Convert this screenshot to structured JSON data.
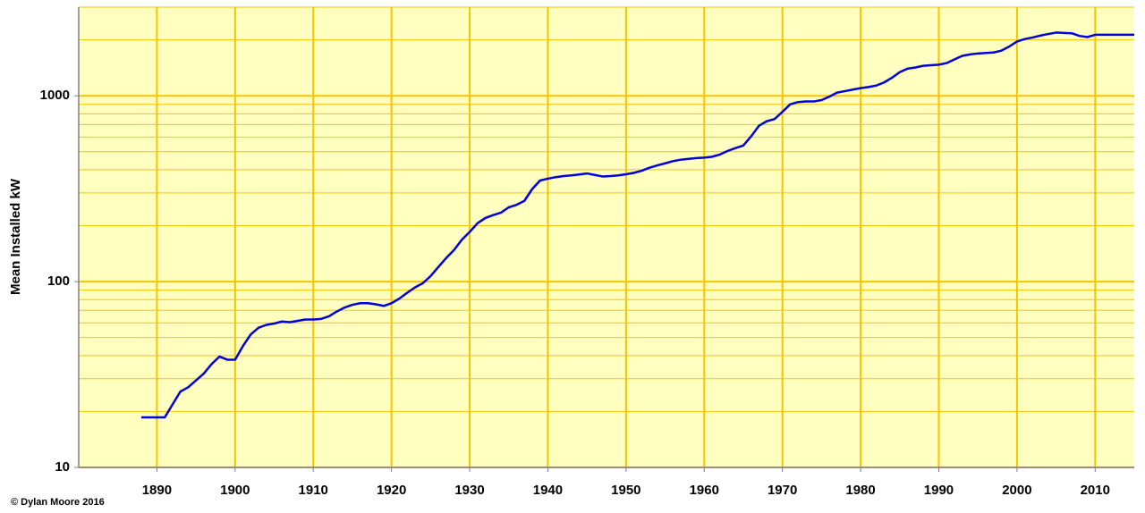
{
  "chart_data": {
    "type": "line",
    "y_label": "Mean Installed kW",
    "credit": "© Dylan Moore 2016",
    "log_y": true,
    "grid": true,
    "color": "#0000dd",
    "xlim": [
      1880,
      2015
    ],
    "xticks": [
      1890,
      1900,
      1910,
      1920,
      1930,
      1940,
      1950,
      1960,
      1970,
      1980,
      1990,
      2000,
      2010
    ],
    "ylim": [
      10,
      3000
    ],
    "yticks": [
      10,
      100,
      1000
    ],
    "yminor": [
      20,
      30,
      40,
      50,
      60,
      70,
      80,
      90,
      200,
      300,
      400,
      500,
      600,
      700,
      800,
      900,
      2000,
      3000
    ],
    "x": [
      1888,
      1891,
      1893,
      1894,
      1896,
      1897,
      1898,
      1899,
      1900,
      1901,
      1902,
      1903,
      1904,
      1905,
      1906,
      1907,
      1908,
      1909,
      1910,
      1911,
      1912,
      1913,
      1914,
      1915,
      1916,
      1917,
      1918,
      1919,
      1920,
      1921,
      1922,
      1923,
      1924,
      1925,
      1926,
      1927,
      1928,
      1929,
      1930,
      1931,
      1932,
      1933,
      1934,
      1935,
      1936,
      1937,
      1938,
      1939,
      1940,
      1941,
      1942,
      1943,
      1944,
      1945,
      1946,
      1947,
      1948,
      1949,
      1950,
      1951,
      1952,
      1953,
      1954,
      1955,
      1956,
      1957,
      1958,
      1959,
      1960,
      1961,
      1962,
      1963,
      1964,
      1965,
      1966,
      1967,
      1968,
      1969,
      1970,
      1971,
      1972,
      1973,
      1974,
      1975,
      1976,
      1977,
      1978,
      1979,
      1980,
      1981,
      1982,
      1983,
      1984,
      1985,
      1986,
      1987,
      1988,
      1989,
      1990,
      1991,
      1992,
      1993,
      1994,
      1995,
      1996,
      1997,
      1998,
      1999,
      2000,
      2001,
      2002,
      2003,
      2004,
      2005,
      2006,
      2007,
      2008,
      2009,
      2010,
      2011,
      2012,
      2013,
      2014,
      2015
    ],
    "values": [
      18.6,
      18.6,
      25.6,
      27,
      32,
      36,
      39.5,
      38,
      38,
      45,
      52,
      56.5,
      58.5,
      59.5,
      61,
      60.5,
      61.5,
      62.5,
      62.5,
      63,
      65,
      69,
      72.5,
      75,
      76.5,
      76.5,
      75.5,
      74,
      76.5,
      81,
      87,
      93,
      98,
      107,
      120,
      134,
      148,
      168,
      185,
      206,
      220,
      228,
      235,
      251,
      259,
      272,
      315,
      350,
      358,
      365,
      370,
      373,
      377,
      382,
      375,
      368,
      370,
      373,
      378,
      385,
      395,
      410,
      422,
      433,
      445,
      453,
      458,
      462,
      465,
      470,
      483,
      505,
      523,
      540,
      605,
      690,
      730,
      750,
      820,
      900,
      925,
      932,
      932,
      948,
      990,
      1040,
      1060,
      1080,
      1100,
      1115,
      1135,
      1180,
      1250,
      1340,
      1400,
      1420,
      1450,
      1460,
      1470,
      1500,
      1570,
      1640,
      1670,
      1690,
      1700,
      1710,
      1750,
      1840,
      1960,
      2020,
      2060,
      2110,
      2150,
      2190,
      2180,
      2170,
      2100,
      2070,
      2130,
      2130,
      2130,
      2130,
      2130,
      2130
    ]
  }
}
